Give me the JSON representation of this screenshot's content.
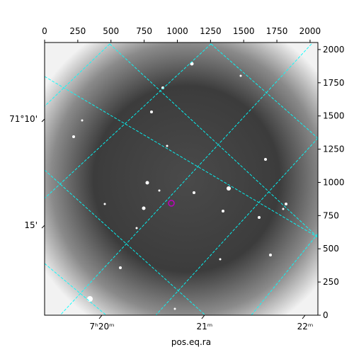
{
  "chart_data": {
    "type": "image",
    "xlabel": "pos.eq.ra",
    "xlim": [
      0,
      2059
    ],
    "ylim": [
      0,
      2053
    ],
    "xticks": [
      0,
      250,
      500,
      750,
      1000,
      1250,
      1500,
      1750,
      2000
    ],
    "yticks": [
      0,
      250,
      500,
      750,
      1000,
      1250,
      1500,
      1750,
      2000
    ],
    "wcs_xticks": [
      {
        "value": 432,
        "label": "7ʰ20ᵐ"
      },
      {
        "value": 1205,
        "label": "21ᵐ"
      },
      {
        "value": 1963,
        "label": "22ᵐ"
      }
    ],
    "wcs_yticks": [
      {
        "value": 1477,
        "label": "71°10'"
      },
      {
        "value": 677,
        "label": "15'"
      }
    ],
    "grid_color": "#00ffff",
    "marker": {
      "x": 955,
      "y": 843,
      "color": "#c000c0"
    }
  }
}
